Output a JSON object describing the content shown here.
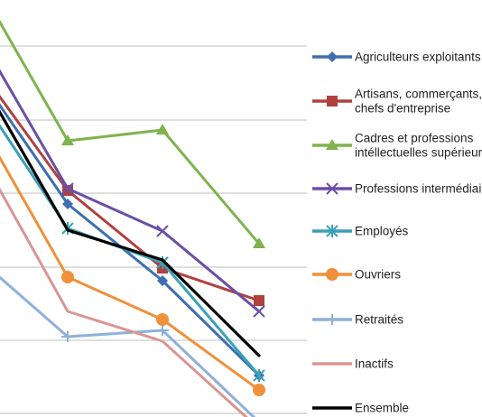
{
  "chart_data": {
    "type": "line",
    "x": [
      "",
      "",
      "",
      "",
      ""
    ],
    "series": [
      {
        "name": "Agriculteurs exploitants",
        "color": "#3d6fb0",
        "marker": "diamond",
        "values": [
          null,
          null,
          null,
          null,
          null
        ]
      },
      {
        "name": "Artisans, commerçants, chefs d'entreprise",
        "color": "#b0413e",
        "marker": "square",
        "values": [
          null,
          null,
          null,
          null,
          null
        ]
      },
      {
        "name": "Cadres et professions intellectuelles supérieures",
        "color": "#7fb34d",
        "marker": "triangle",
        "values": [
          null,
          null,
          null,
          null,
          null
        ]
      },
      {
        "name": "Professions intermédiaires",
        "color": "#6a4fa3",
        "marker": "x",
        "values": [
          null,
          null,
          null,
          null,
          null
        ]
      },
      {
        "name": "Employés",
        "color": "#3aa1b8",
        "marker": "asterisk",
        "values": [
          null,
          null,
          null,
          null,
          null
        ]
      },
      {
        "name": "Ouvriers",
        "color": "#f0903a",
        "marker": "circle",
        "values": [
          null,
          null,
          null,
          null,
          null
        ]
      },
      {
        "name": "Retraités",
        "color": "#8fb0d9",
        "marker": "plus",
        "values": [
          null,
          null,
          null,
          null,
          null
        ]
      },
      {
        "name": "Inactifs",
        "color": "#d99594",
        "marker": "none",
        "values": [
          null,
          null,
          null,
          null,
          null
        ]
      },
      {
        "name": "Ensemble",
        "color": "#000000",
        "marker": "none",
        "values": [
          null,
          null,
          null,
          null,
          null
        ]
      }
    ],
    "legend_position": "right",
    "grid": true
  },
  "legend": {
    "items": [
      {
        "lines": [
          "Agriculteurs exploitants"
        ]
      },
      {
        "lines": [
          "Artisans, commerçants,",
          "chefs d'entreprise"
        ]
      },
      {
        "lines": [
          "Cadres et professions",
          "intéllectuelles supérieures"
        ]
      },
      {
        "lines": [
          "Professions intermédiaires"
        ]
      },
      {
        "lines": [
          "Employés"
        ]
      },
      {
        "lines": [
          "Ouvriers"
        ]
      },
      {
        "lines": [
          "Retraités"
        ]
      },
      {
        "lines": [
          "Inactifs"
        ]
      },
      {
        "lines": [
          "Ensemble"
        ]
      }
    ]
  }
}
